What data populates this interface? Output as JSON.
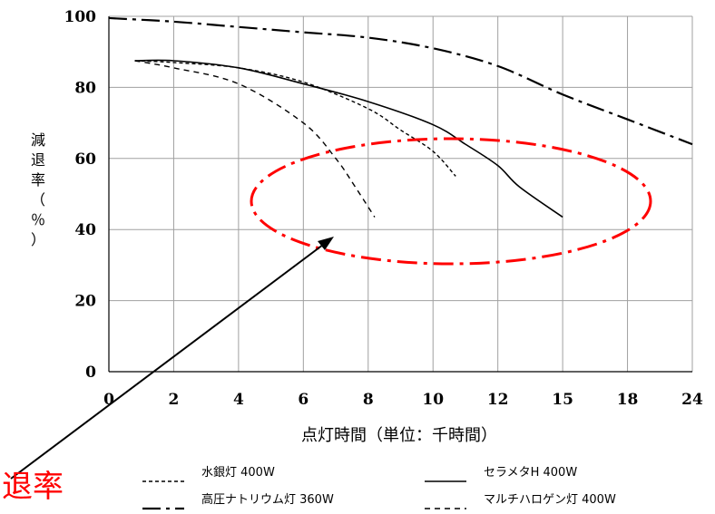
{
  "chart_data": {
    "type": "line",
    "title": "",
    "xlabel": "点灯時間（単位：千時間）",
    "ylabel": "減退率（％）",
    "x_tick_labels": [
      "0",
      "2",
      "4",
      "6",
      "8",
      "10",
      "12",
      "15",
      "18",
      "24"
    ],
    "y_ticks": [
      0,
      20,
      40,
      60,
      80,
      100
    ],
    "ylim": [
      0,
      100
    ],
    "grid": true,
    "legend_position": "bottom",
    "series": [
      {
        "name": "水銀灯 400W",
        "line_style": "dotted",
        "color": "#000000",
        "points": [
          [
            0.8,
            87.5
          ],
          [
            2,
            87
          ],
          [
            4,
            85.5
          ],
          [
            6,
            81.5
          ],
          [
            8,
            74
          ],
          [
            9,
            68
          ],
          [
            10,
            62
          ],
          [
            10.7,
            55
          ]
        ]
      },
      {
        "name": "セラメタH 400W",
        "line_style": "solid",
        "color": "#000000",
        "points": [
          [
            0.8,
            87.5
          ],
          [
            2,
            87.5
          ],
          [
            4,
            85.5
          ],
          [
            6,
            81
          ],
          [
            8,
            76
          ],
          [
            10,
            69.5
          ],
          [
            11,
            64
          ],
          [
            12,
            58
          ],
          [
            13,
            52
          ],
          [
            15,
            43.5
          ]
        ]
      },
      {
        "name": "高圧ナトリウム灯 360W",
        "line_style": "dash-dot",
        "color": "#000000",
        "points": [
          [
            0,
            99.5
          ],
          [
            2,
            98.5
          ],
          [
            4,
            97
          ],
          [
            6,
            95.5
          ],
          [
            8,
            94
          ],
          [
            10,
            91
          ],
          [
            12,
            86
          ],
          [
            15,
            78
          ],
          [
            18,
            71
          ],
          [
            24,
            64
          ]
        ]
      },
      {
        "name": "マルチハロゲン灯 400W",
        "line_style": "dashed",
        "color": "#000000",
        "points": [
          [
            0.8,
            87.5
          ],
          [
            2,
            85.5
          ],
          [
            4,
            81
          ],
          [
            6,
            70
          ],
          [
            7,
            60
          ],
          [
            7.6,
            52
          ],
          [
            8.2,
            43.5
          ]
        ]
      }
    ],
    "annotation": {
      "text": "退率",
      "color": "#ff0000"
    }
  }
}
